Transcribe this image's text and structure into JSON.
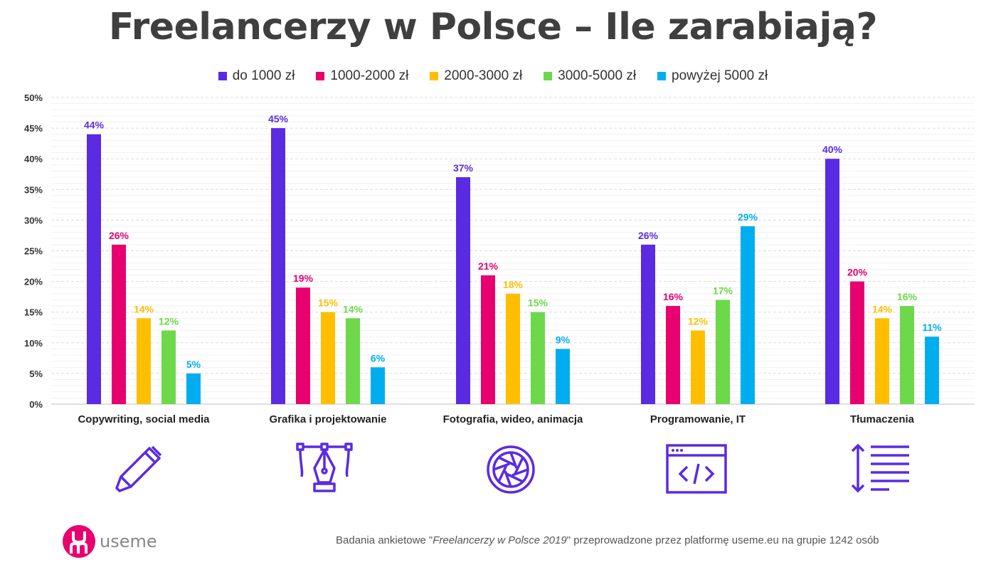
{
  "chart_data": {
    "type": "bar",
    "title": "Freelancerzy w Polsce – Ile zarabiają?",
    "categories": [
      "Copywriting, social media",
      "Grafika i projektowanie",
      "Fotografia, wideo, animacja",
      "Programowanie, IT",
      "Tłumaczenia"
    ],
    "series": [
      {
        "name": "do 1000 zł",
        "color": "#5a2be3",
        "values": [
          44,
          45,
          37,
          26,
          40
        ],
        "labels": [
          "44%",
          "45%",
          "37%",
          "26%",
          "40%"
        ]
      },
      {
        "name": "1000-2000 zł",
        "color": "#e8006f",
        "values": [
          26,
          19,
          21,
          16,
          20
        ],
        "labels": [
          "26%",
          "19%",
          "21%",
          "16%",
          "20%"
        ]
      },
      {
        "name": "2000-3000 zł",
        "color": "#ffbf00",
        "values": [
          14,
          15,
          18,
          12,
          14
        ],
        "labels": [
          "14%",
          "15%",
          "18%",
          "12%",
          "14%"
        ]
      },
      {
        "name": "3000-5000 zł",
        "color": "#6cd84a",
        "values": [
          12,
          14,
          15,
          17,
          16
        ],
        "labels": [
          "12%",
          "14%",
          "15%",
          "17%",
          "16%"
        ]
      },
      {
        "name": "powyżej 5000 zł",
        "color": "#00aeef",
        "values": [
          5,
          6,
          9,
          29,
          11
        ],
        "labels": [
          "5%",
          "6%",
          "9%",
          "29%",
          "11%"
        ]
      }
    ],
    "ylim": [
      0,
      50
    ],
    "yticks": [
      "0%",
      "5%",
      "10%",
      "15%",
      "20%",
      "25%",
      "30%",
      "35%",
      "40%",
      "45%",
      "50%"
    ],
    "legend": "top-center",
    "grid": true
  },
  "icons": [
    "pen-icon",
    "pen-tool-icon",
    "camera-aperture-icon",
    "code-window-icon",
    "text-lines-icon"
  ],
  "footer": {
    "logo_text": "useme",
    "note_prefix": "Badania ankietowe \"",
    "note_title": "Freelancerzy w Polsce 2019",
    "note_suffix": "\" przeprowadzone przez platformę useme.eu na grupie 1242 osób"
  }
}
